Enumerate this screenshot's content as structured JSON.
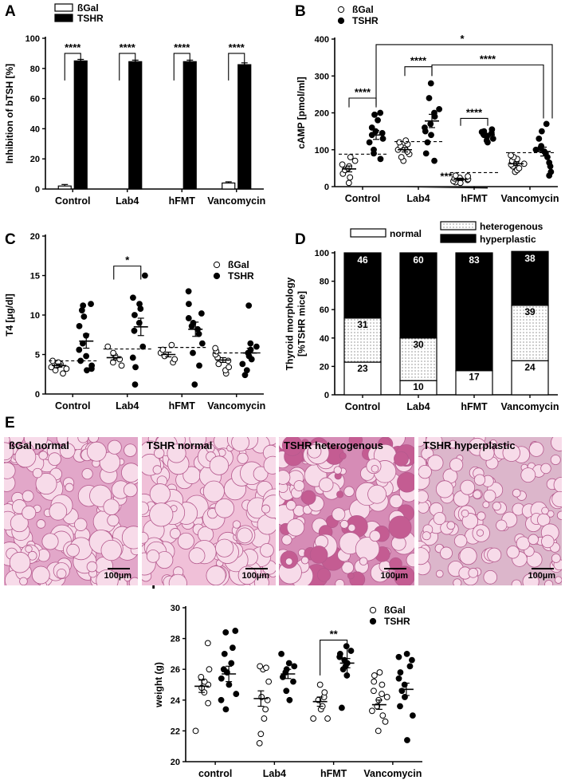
{
  "panels": {
    "A": "A",
    "B": "B",
    "C": "C",
    "D": "D",
    "E": "E",
    "F": "F"
  },
  "chart_data": [
    {
      "panel": "A",
      "type": "bar",
      "categories": [
        "Control",
        "Lab4",
        "hFMT",
        "Vancomycin"
      ],
      "ylabel": "Inhibition of bTSH [%]",
      "ylim": [
        0,
        100
      ],
      "yticks": [
        0,
        20,
        40,
        60,
        80,
        100
      ],
      "legend": [
        "ßGal",
        "TSHR"
      ],
      "series": [
        {
          "name": "ßGal",
          "values": [
            2,
            0,
            0,
            4
          ],
          "errors": [
            1,
            0,
            0,
            0.8
          ],
          "color": "#ffffff"
        },
        {
          "name": "TSHR",
          "values": [
            85,
            84.5,
            84.5,
            82.5
          ],
          "errors": [
            1,
            1,
            1,
            1.2
          ],
          "color": "#000000"
        }
      ],
      "significance": [
        "****",
        "****",
        "****",
        "****"
      ]
    },
    {
      "panel": "B",
      "type": "scatter",
      "categories": [
        "Control",
        "Lab4",
        "hFMT",
        "Vancomycin"
      ],
      "ylabel": "cAMP [pmol/ml]",
      "ylim": [
        0,
        400
      ],
      "yticks": [
        0,
        100,
        200,
        300,
        400
      ],
      "legend": [
        "ßGal",
        "TSHR"
      ],
      "cutoff": [
        88,
        122,
        38,
        92
      ],
      "series": [
        {
          "name": "ßGal",
          "points": [
            [
              10,
              25,
              35,
              45,
              50,
              55,
              60,
              70,
              80
            ],
            [
              70,
              80,
              88,
              95,
              100,
              105,
              110,
              115,
              120,
              125
            ],
            [
              10,
              12,
              15,
              18,
              20,
              22,
              24,
              28,
              30
            ],
            [
              40,
              45,
              50,
              55,
              60,
              62,
              65,
              70,
              75,
              80,
              85
            ]
          ],
          "mean": [
            48,
            100,
            20,
            62
          ],
          "sem": [
            8,
            6,
            3,
            5
          ]
        },
        {
          "name": "TSHR",
          "points": [
            [
              75,
              90,
              100,
              120,
              130,
              140,
              145,
              150,
              160,
              180,
              195,
              200
            ],
            [
              70,
              90,
              120,
              140,
              150,
              160,
              170,
              190,
              200,
              210,
              240,
              280
            ],
            [
              120,
              125,
              130,
              135,
              138,
              140,
              142,
              145,
              148,
              150,
              155
            ],
            [
              30,
              40,
              55,
              65,
              80,
              90,
              95,
              100,
              105,
              110,
              130,
              150,
              170
            ]
          ],
          "mean": [
            140,
            178,
            140,
            95
          ],
          "sem": [
            12,
            18,
            4,
            12
          ]
        }
      ],
      "significance": [
        "****",
        "****",
        "****",
        "***",
        "****",
        "*"
      ]
    },
    {
      "panel": "C",
      "type": "scatter",
      "categories": [
        "Control",
        "Lab4",
        "hFMT",
        "Vancomycin"
      ],
      "ylabel": "T4 [µg/dl]",
      "ylim": [
        0,
        20
      ],
      "yticks": [
        0,
        5,
        10,
        15,
        20
      ],
      "legend": [
        "ßGal",
        "TSHR"
      ],
      "cutoff": [
        4.2,
        5.7,
        5.9,
        5.2
      ],
      "series": [
        {
          "name": "ßGal",
          "points": [
            [
              2.6,
              3.0,
              3.2,
              3.4,
              3.6,
              3.8,
              4.0,
              4.2
            ],
            [
              3.6,
              4.0,
              4.4,
              4.8,
              5.2,
              6.0
            ],
            [
              4.0,
              4.4,
              4.8,
              5.2,
              5.6,
              6.2
            ],
            [
              2.6,
              3.0,
              3.4,
              3.8,
              4.2,
              4.6,
              5.0,
              5.4,
              5.8
            ]
          ],
          "mean": [
            3.6,
            4.6,
            5.0,
            4.3
          ],
          "sem": [
            0.2,
            0.3,
            0.3,
            0.3
          ]
        },
        {
          "name": "TSHR",
          "points": [
            [
              3.0,
              3.2,
              3.6,
              4.2,
              4.8,
              5.6,
              6.4,
              7.4,
              8.6,
              9.8,
              10.6,
              11.2,
              11.4
            ],
            [
              1.2,
              3.4,
              4.6,
              6.0,
              8.0,
              9.0,
              10.0,
              10.8,
              11.4,
              12.2,
              15.0
            ],
            [
              1.2,
              3.6,
              5.2,
              6.4,
              7.6,
              8.2,
              8.6,
              9.0,
              9.6,
              10.2,
              11.4,
              13.0
            ],
            [
              2.4,
              3.0,
              3.8,
              4.4,
              4.8,
              5.2,
              5.6,
              6.0,
              6.4,
              11.2
            ]
          ],
          "mean": [
            6.7,
            8.5,
            8.2,
            5.2
          ],
          "sem": [
            0.9,
            1.1,
            0.9,
            0.6
          ]
        }
      ],
      "significance": [
        "*"
      ]
    },
    {
      "panel": "D",
      "type": "bar",
      "stacked": true,
      "categories": [
        "Control",
        "Lab4",
        "hFMT",
        "Vancomycin"
      ],
      "ylabel": "Thyroid morphology\n[%TSHR mice]",
      "ylim": [
        0,
        100
      ],
      "yticks": [
        0,
        20,
        40,
        60,
        80,
        100
      ],
      "legend": [
        "normal",
        "heterogenous",
        "hyperplastic"
      ],
      "series": [
        {
          "name": "normal",
          "values": [
            23,
            10,
            17,
            24
          ],
          "labels": [
            "23",
            "10",
            "17",
            "24"
          ]
        },
        {
          "name": "heterogenous",
          "values": [
            31,
            30,
            0,
            39
          ],
          "labels": [
            "31",
            "30",
            "",
            "39"
          ]
        },
        {
          "name": "hyperplastic",
          "values": [
            46,
            60,
            83,
            38
          ],
          "labels": [
            "46",
            "60",
            "83",
            "38"
          ]
        }
      ]
    },
    {
      "panel": "F",
      "type": "scatter",
      "categories": [
        "control",
        "Lab4",
        "hFMT",
        "Vancomycin"
      ],
      "ylabel": "weight (g)",
      "ylim": [
        20,
        30
      ],
      "yticks": [
        20,
        22,
        24,
        26,
        28,
        30
      ],
      "legend": [
        "ßGal",
        "TSHR"
      ],
      "series": [
        {
          "name": "ßGal",
          "points": [
            [
              22.0,
              23.8,
              24.5,
              24.8,
              25.0,
              25.2,
              25.5,
              26.0,
              27.7
            ],
            [
              21.2,
              21.8,
              22.8,
              23.4,
              24.0,
              24.2,
              25.2,
              26.0,
              26.1,
              26.2
            ],
            [
              22.8,
              22.8,
              23.4,
              23.6,
              24.0,
              24.2,
              24.5,
              25.0
            ],
            [
              22.0,
              22.6,
              23.0,
              23.3,
              23.6,
              24.0,
              24.2,
              24.4,
              24.6,
              25.0,
              25.2,
              25.6,
              25.8
            ]
          ],
          "mean": [
            24.9,
            24.1,
            23.9,
            23.7
          ],
          "sem": [
            0.4,
            0.5,
            0.3,
            0.3
          ]
        },
        {
          "name": "TSHR",
          "points": [
            [
              23.4,
              24.0,
              24.4,
              25.0,
              25.4,
              25.8,
              26.0,
              26.4,
              27.0,
              27.4,
              28.4,
              28.5
            ],
            [
              24.0,
              24.6,
              25.2,
              25.5,
              25.8,
              26.0,
              26.2,
              26.4,
              27.0
            ],
            [
              23.5,
              25.6,
              26.0,
              26.2,
              26.4,
              26.6,
              26.8,
              27.0,
              27.2,
              27.5
            ],
            [
              21.4,
              23.0,
              23.6,
              24.2,
              24.6,
              25.0,
              25.4,
              25.8,
              26.2,
              26.6,
              26.8,
              27.0
            ]
          ],
          "mean": [
            25.7,
            25.7,
            26.4,
            24.7
          ],
          "sem": [
            0.5,
            0.3,
            0.3,
            0.4
          ]
        }
      ],
      "significance": [
        "**"
      ]
    }
  ],
  "micrographs": [
    {
      "label": "ßGal normal",
      "scale": "100µm",
      "tone": "#e2a7c9"
    },
    {
      "label": "TSHR normal",
      "scale": "100µm",
      "tone": "#f0c0d8"
    },
    {
      "label": "TSHR heterogenous",
      "scale": "100µm",
      "tone": "#d68cb6"
    },
    {
      "label": "TSHR hyperplastic",
      "scale": "100µm",
      "tone": "#dcb6cb"
    }
  ]
}
